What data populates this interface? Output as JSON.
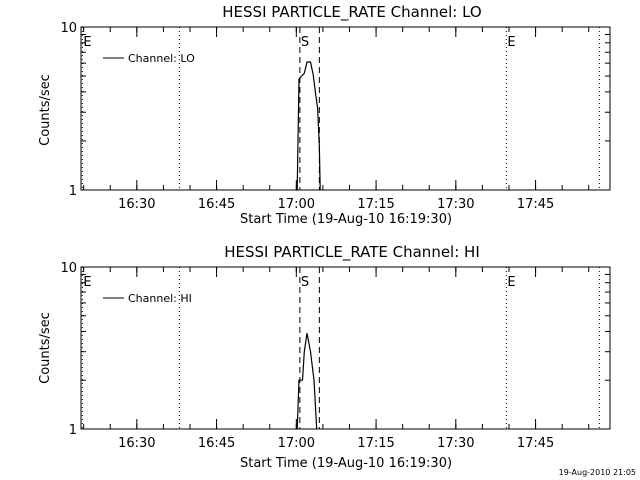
{
  "footer": {
    "timestamp": "19-Aug-2010 21:05"
  },
  "chart_data": [
    {
      "type": "line",
      "title": "HESSI PARTICLE_RATE Channel: LO",
      "xlabel": "Start Time (19-Aug-10 16:19:30)",
      "ylabel": "Counts/sec",
      "yscale": "log",
      "ylim": [
        1,
        10
      ],
      "xlim": [
        "16:19:30",
        "17:59:00"
      ],
      "y_tick_labels": [
        "1",
        "10"
      ],
      "x_ticks": [
        {
          "t": "16:30",
          "label": "16:30"
        },
        {
          "t": "16:45",
          "label": "16:45"
        },
        {
          "t": "17:00",
          "label": "17:00"
        },
        {
          "t": "17:15",
          "label": "17:15"
        },
        {
          "t": "17:30",
          "label": "17:30"
        },
        {
          "t": "17:45",
          "label": "17:45"
        }
      ],
      "legend": {
        "label": "Channel: LO",
        "placement": "top-left"
      },
      "series": [
        {
          "name": "Channel: LO",
          "points": [
            [
              "17:00:00",
              1.0
            ],
            [
              "17:00:10",
              1.0
            ],
            [
              "17:00:30",
              4.8
            ],
            [
              "17:01:00",
              5.0
            ],
            [
              "17:01:30",
              5.2
            ],
            [
              "17:02:00",
              6.1
            ],
            [
              "17:02:40",
              6.1
            ],
            [
              "17:03:10",
              5.1
            ],
            [
              "17:03:40",
              3.8
            ],
            [
              "17:04:00",
              3.2
            ],
            [
              "17:04:20",
              1.8
            ],
            [
              "17:04:30",
              1.0
            ]
          ]
        }
      ],
      "markers": [
        {
          "t": "16:19:45",
          "style": "dotted",
          "label": "E"
        },
        {
          "t": "16:38:00",
          "style": "dotted",
          "label": ""
        },
        {
          "t": "17:00:40",
          "style": "dashed",
          "label": "S"
        },
        {
          "t": "17:04:20",
          "style": "dashed",
          "label": ""
        },
        {
          "t": "17:39:30",
          "style": "dotted",
          "label": "E"
        },
        {
          "t": "17:57:00",
          "style": "dotted",
          "label": ""
        }
      ]
    },
    {
      "type": "line",
      "title": "HESSI PARTICLE_RATE Channel: HI",
      "xlabel": "Start Time (19-Aug-10 16:19:30)",
      "ylabel": "Counts/sec",
      "yscale": "log",
      "ylim": [
        1,
        10
      ],
      "xlim": [
        "16:19:30",
        "17:59:00"
      ],
      "y_tick_labels": [
        "1",
        "10"
      ],
      "x_ticks": [
        {
          "t": "16:30",
          "label": "16:30"
        },
        {
          "t": "16:45",
          "label": "16:45"
        },
        {
          "t": "17:00",
          "label": "17:00"
        },
        {
          "t": "17:15",
          "label": "17:15"
        },
        {
          "t": "17:30",
          "label": "17:30"
        },
        {
          "t": "17:45",
          "label": "17:45"
        }
      ],
      "legend": {
        "label": "Channel: HI",
        "placement": "top-left"
      },
      "series": [
        {
          "name": "Channel: HI",
          "points": [
            [
              "17:00:00",
              1.0
            ],
            [
              "17:00:10",
              1.0
            ],
            [
              "17:00:30",
              2.0
            ],
            [
              "17:01:10",
              2.0
            ],
            [
              "17:01:30",
              3.0
            ],
            [
              "17:02:00",
              3.9
            ],
            [
              "17:02:40",
              3.0
            ],
            [
              "17:03:20",
              2.0
            ],
            [
              "17:03:50",
              1.0
            ]
          ]
        }
      ],
      "markers": [
        {
          "t": "16:19:45",
          "style": "dotted",
          "label": "E"
        },
        {
          "t": "16:38:00",
          "style": "dotted",
          "label": ""
        },
        {
          "t": "17:00:40",
          "style": "dashed",
          "label": "S"
        },
        {
          "t": "17:04:20",
          "style": "dashed",
          "label": ""
        },
        {
          "t": "17:39:30",
          "style": "dotted",
          "label": "E"
        },
        {
          "t": "17:57:00",
          "style": "dotted",
          "label": ""
        }
      ]
    }
  ]
}
